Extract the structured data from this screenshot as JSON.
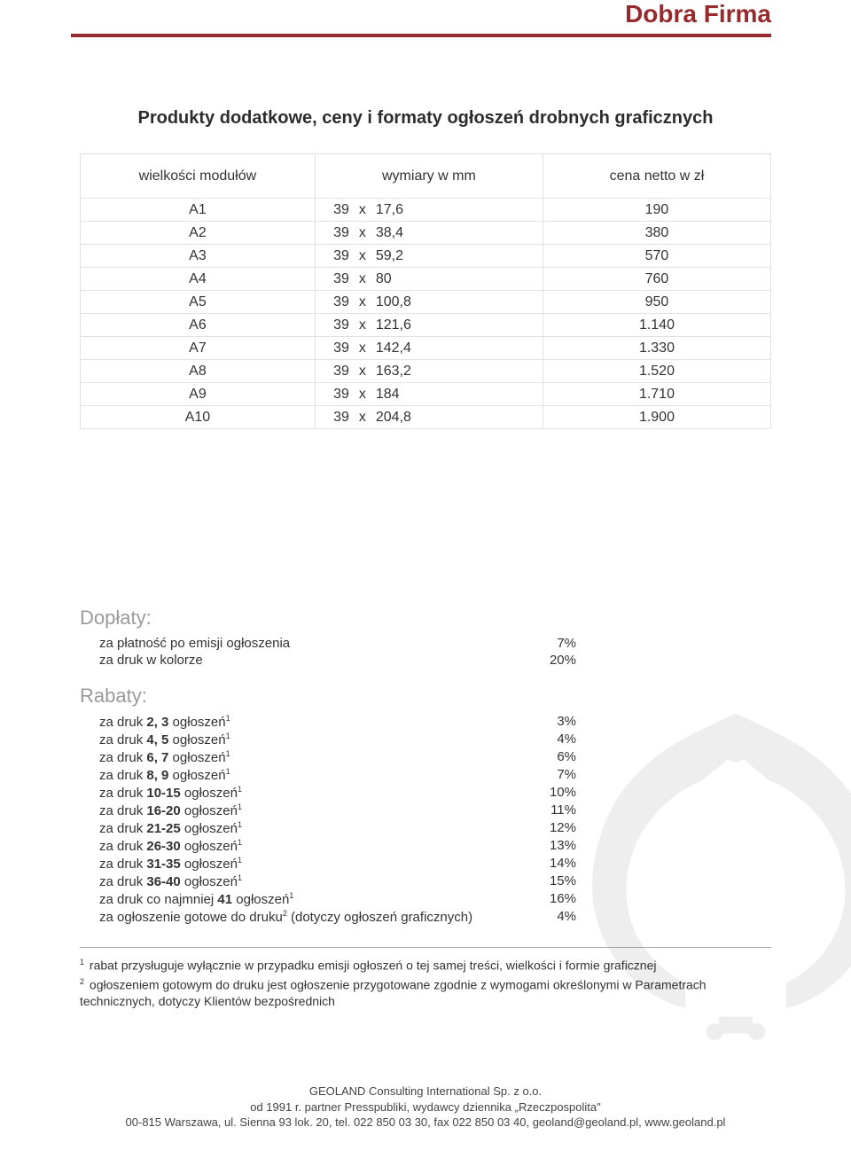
{
  "colors": {
    "brand": "#962a2c",
    "rule": "#962a2c",
    "section_h": "#9a9a9a",
    "border": "#e2e2e2",
    "text": "#333333"
  },
  "brand": "Dobra Firma",
  "title": "Produkty dodatkowe, ceny i formaty ogłoszeń drobnych graficznych",
  "modules_table": {
    "columns": [
      "wielkości modułów",
      "wymiary w mm",
      "cena netto w zł"
    ],
    "rows": [
      {
        "mod": "A1",
        "a": "39",
        "b": "17,6",
        "price": "190"
      },
      {
        "mod": "A2",
        "a": "39",
        "b": "38,4",
        "price": "380"
      },
      {
        "mod": "A3",
        "a": "39",
        "b": "59,2",
        "price": "570"
      },
      {
        "mod": "A4",
        "a": "39",
        "b": "80",
        "price": "760"
      },
      {
        "mod": "A5",
        "a": "39",
        "b": "100,8",
        "price": "950"
      },
      {
        "mod": "A6",
        "a": "39",
        "b": "121,6",
        "price": "1.140"
      },
      {
        "mod": "A7",
        "a": "39",
        "b": "142,4",
        "price": "1.330"
      },
      {
        "mod": "A8",
        "a": "39",
        "b": "163,2",
        "price": "1.520"
      },
      {
        "mod": "A9",
        "a": "39",
        "b": "184",
        "price": "1.710"
      },
      {
        "mod": "A10",
        "a": "39",
        "b": "204,8",
        "price": "1.900"
      }
    ],
    "x": "x"
  },
  "doplaty": {
    "heading": "Dopłaty:",
    "items": [
      {
        "label": "za płatność po emisji ogłoszenia",
        "value": "7%"
      },
      {
        "label": "za druk w kolorze",
        "value": "20%"
      }
    ]
  },
  "rabaty": {
    "heading": "Rabaty:",
    "items": [
      {
        "pre": "za druk ",
        "bold": "2, 3",
        "post": " ogłoszeń",
        "sup": "1",
        "value": "3%"
      },
      {
        "pre": "za druk ",
        "bold": "4, 5",
        "post": " ogłoszeń",
        "sup": "1",
        "value": "4%"
      },
      {
        "pre": "za druk ",
        "bold": "6, 7",
        "post": " ogłoszeń",
        "sup": "1",
        "value": "6%"
      },
      {
        "pre": "za druk ",
        "bold": "8, 9",
        "post": " ogłoszeń",
        "sup": "1",
        "value": "7%"
      },
      {
        "pre": "za druk ",
        "bold": "10-15",
        "post": " ogłoszeń",
        "sup": "1",
        "value": "10%"
      },
      {
        "pre": "za druk ",
        "bold": "16-20",
        "post": " ogłoszeń",
        "sup": "1",
        "value": "11%"
      },
      {
        "pre": "za druk ",
        "bold": "21-25",
        "post": " ogłoszeń",
        "sup": "1",
        "value": "12%"
      },
      {
        "pre": "za druk ",
        "bold": "26-30",
        "post": " ogłoszeń",
        "sup": "1",
        "value": "13%"
      },
      {
        "pre": "za druk ",
        "bold": "31-35",
        "post": " ogłoszeń",
        "sup": "1",
        "value": "14%"
      },
      {
        "pre": "za druk ",
        "bold": "36-40",
        "post": " ogłoszeń",
        "sup": "1",
        "value": "15%"
      },
      {
        "pre": "za druk co najmniej ",
        "bold": "41",
        "post": " ogłoszeń",
        "sup": "1",
        "value": "16%"
      },
      {
        "pre": "za ogłoszenie gotowe do druku",
        "bold": "",
        "post": "",
        "sup": "2",
        "post2": " (dotyczy ogłoszeń graficznych)",
        "value": "4%"
      }
    ]
  },
  "footnotes": [
    {
      "sup": "1",
      "text": "rabat przysługuje wyłącznie w przypadku emisji ogłoszeń o tej samej treści, wielkości i formie graficznej"
    },
    {
      "sup": "2",
      "text": "ogłoszeniem gotowym do druku jest ogłoszenie przygotowane zgodnie z wymogami określonymi w Parametrach technicznych, dotyczy Klientów bezpośrednich"
    }
  ],
  "footer": {
    "l1": "GEOLAND Consulting International Sp. z o.o.",
    "l2": "od 1991 r. partner Presspubliki, wydawcy dziennika „Rzeczpospolita\"",
    "l3": "00-815 Warszawa, ul. Sienna 93 lok. 20, tel. 022 850 03 30, fax 022 850 03 40, geoland@geoland.pl, www.geoland.pl"
  }
}
